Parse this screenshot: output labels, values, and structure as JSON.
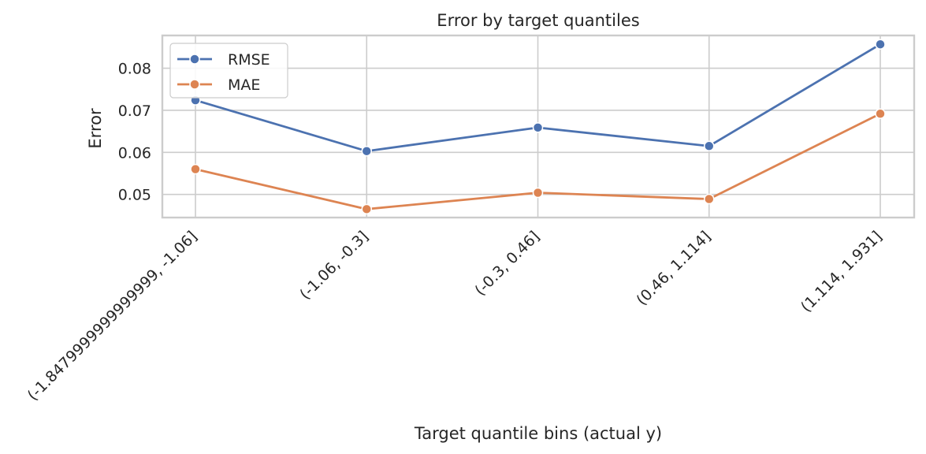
{
  "chart_data": {
    "type": "line",
    "title": "Error by target quantiles",
    "xlabel": "Target quantile bins (actual y)",
    "ylabel": "Error",
    "categories": [
      "(-1.8479999999999999, -1.06]",
      "(-1.06, -0.3]",
      "(-0.3, 0.46]",
      "(0.46, 1.114]",
      "(1.114, 1.931]"
    ],
    "series": [
      {
        "name": "RMSE",
        "color": "#4c72b0",
        "values": [
          0.0724,
          0.0603,
          0.0659,
          0.0615,
          0.0857
        ]
      },
      {
        "name": "MAE",
        "color": "#dd8452",
        "values": [
          0.056,
          0.0465,
          0.0504,
          0.0489,
          0.0692
        ]
      }
    ],
    "ylim": [
      0.0445,
      0.0878
    ],
    "yticks": [
      0.05,
      0.06,
      0.07,
      0.08
    ],
    "ytick_labels": [
      "0.05",
      "0.06",
      "0.07",
      "0.08"
    ],
    "grid": true,
    "legend": "top-left"
  }
}
